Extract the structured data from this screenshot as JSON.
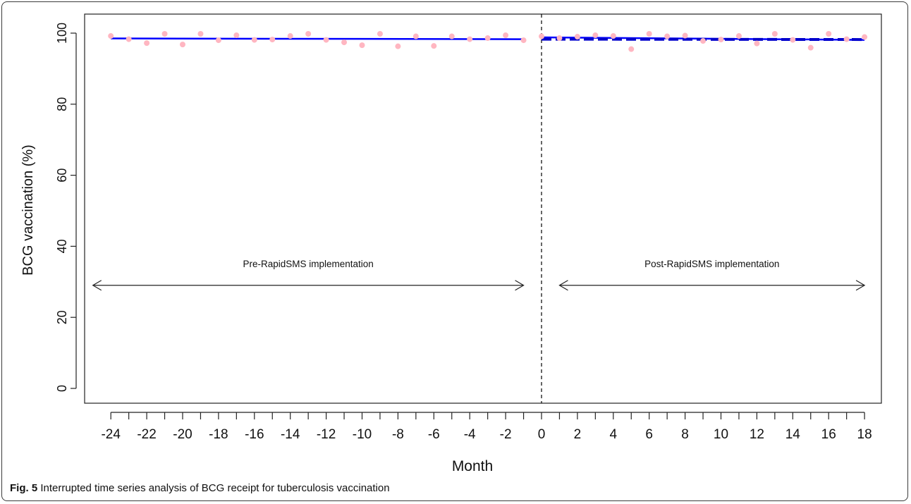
{
  "chart_data": {
    "type": "scatter",
    "xlabel": "Month",
    "ylabel": "BCG vaccination (%)",
    "xlim": [
      -25.5,
      19
    ],
    "ylim": [
      0,
      100
    ],
    "x_ticks": [
      -24,
      -23,
      -22,
      -21,
      -20,
      -19,
      -18,
      -17,
      -16,
      -15,
      -14,
      -13,
      -12,
      -11,
      -10,
      -9,
      -8,
      -7,
      -6,
      -5,
      -4,
      -3,
      -2,
      -1,
      0,
      1,
      2,
      3,
      4,
      5,
      6,
      7,
      8,
      9,
      10,
      11,
      12,
      13,
      14,
      15,
      16,
      17,
      18
    ],
    "x_tick_labels": [
      -24,
      -22,
      -20,
      -18,
      -16,
      -14,
      -12,
      -10,
      -8,
      -6,
      -4,
      -2,
      0,
      2,
      4,
      6,
      8,
      10,
      12,
      14,
      16,
      18
    ],
    "y_ticks": [
      0,
      20,
      40,
      60,
      80,
      100
    ],
    "points": {
      "x": [
        -24,
        -23,
        -22,
        -21,
        -20,
        -19,
        -18,
        -17,
        -16,
        -15,
        -14,
        -13,
        -12,
        -11,
        -10,
        -9,
        -8,
        -7,
        -6,
        -5,
        -4,
        -3,
        -2,
        -1,
        0,
        1,
        2,
        3,
        4,
        5,
        6,
        7,
        8,
        9,
        10,
        11,
        12,
        13,
        14,
        15,
        16,
        17,
        18
      ],
      "y": [
        99.2,
        98.3,
        97.2,
        99.8,
        96.8,
        99.8,
        98.0,
        99.4,
        98.1,
        98.2,
        99.2,
        99.8,
        98.1,
        97.4,
        96.6,
        99.8,
        96.3,
        99.1,
        96.4,
        99.1,
        98.3,
        98.6,
        99.4,
        98.0,
        99.1,
        98.6,
        99.0,
        99.4,
        99.2,
        95.5,
        99.8,
        99.1,
        99.3,
        97.8,
        98.2,
        99.2,
        97.1,
        99.8,
        98.1,
        95.9,
        99.8,
        98.3,
        98.9
      ],
      "color": "#ffb6c1"
    },
    "fitted_lines": [
      {
        "x": [
          -24,
          -1
        ],
        "y": [
          98.5,
          98.3
        ],
        "color": "#0000ff",
        "style": "solid"
      },
      {
        "x": [
          0,
          18
        ],
        "y": [
          98.8,
          98.1
        ],
        "color": "#0000ff",
        "style": "solid"
      },
      {
        "x": [
          0,
          18
        ],
        "y": [
          98.3,
          98.2
        ],
        "color": "#0000cc",
        "style": "dashed"
      }
    ],
    "intervention_line": {
      "x": 0,
      "style": "dashed",
      "color": "#000000"
    },
    "annotations": [
      {
        "text": "Pre-RapidSMS implementation",
        "arrow_from": -25,
        "arrow_to": -1,
        "text_x": -13,
        "y": 31
      },
      {
        "text": "Post-RapidSMS implementation",
        "arrow_from": 1,
        "arrow_to": 18,
        "text_x": 9.5,
        "y": 31
      }
    ]
  },
  "caption": {
    "label": "Fig. 5",
    "text": " Interrupted time series analysis of BCG receipt for tuberculosis vaccination"
  }
}
